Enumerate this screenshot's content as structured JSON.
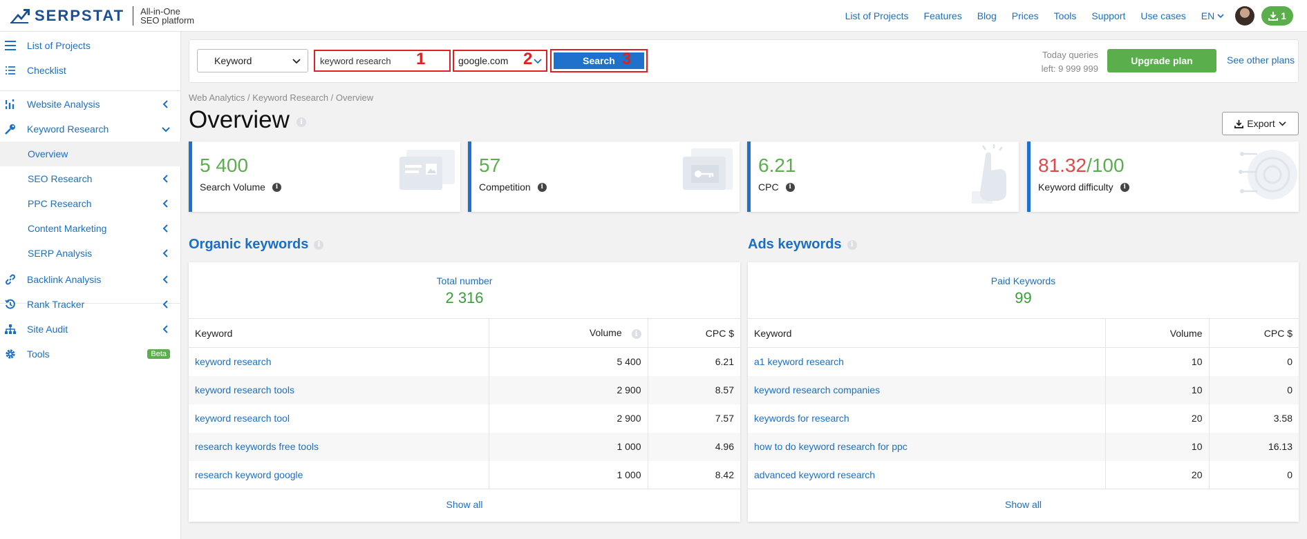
{
  "brand": {
    "name": "SERPSTAT",
    "tagline_1": "All-in-One",
    "tagline_2": "SEO platform"
  },
  "topnav": {
    "links": [
      "List of Projects",
      "Features",
      "Blog",
      "Prices",
      "Tools",
      "Support",
      "Use cases"
    ],
    "lang": "EN",
    "download_count": "1"
  },
  "sidebar": {
    "list_of_projects": "List of Projects",
    "checklist": "Checklist",
    "website_analysis": "Website Analysis",
    "keyword_research": "Keyword Research",
    "overview": "Overview",
    "seo_research": "SEO Research",
    "ppc_research": "PPC Research",
    "content_marketing": "Content Marketing",
    "serp_analysis": "SERP Analysis",
    "backlink_analysis": "Backlink Analysis",
    "rank_tracker": "Rank Tracker",
    "site_audit": "Site Audit",
    "tools": "Tools",
    "beta": "Beta"
  },
  "search": {
    "type": "Keyword",
    "query": "keyword research",
    "database": "google.com",
    "button": "Search",
    "markers": [
      "1",
      "2",
      "3"
    ],
    "queries_line1": "Today queries",
    "queries_line2": "left: 9 999 999",
    "upgrade": "Upgrade plan",
    "other_plans": "See other plans"
  },
  "breadcrumb": "Web Analytics / Keyword Research / Overview",
  "page_title": "Overview",
  "export": "Export",
  "cards": {
    "volume": {
      "value": "5 400",
      "label": "Search Volume"
    },
    "competition": {
      "value": "57",
      "label": "Competition"
    },
    "cpc": {
      "value": "6.21",
      "label": "CPC"
    },
    "difficulty": {
      "value": "81.32",
      "max": "/100",
      "label": "Keyword difficulty"
    }
  },
  "organic": {
    "title": "Organic keywords",
    "total_label": "Total number",
    "total": "2 316",
    "headers": [
      "Keyword",
      "Volume",
      "CPC $"
    ],
    "rows": [
      {
        "keyword": "keyword research",
        "volume": "5 400",
        "cpc": "6.21"
      },
      {
        "keyword": "keyword research tools",
        "volume": "2 900",
        "cpc": "8.57"
      },
      {
        "keyword": "keyword research tool",
        "volume": "2 900",
        "cpc": "7.57"
      },
      {
        "keyword": "research keywords free tools",
        "volume": "1 000",
        "cpc": "4.96"
      },
      {
        "keyword": "research keyword google",
        "volume": "1 000",
        "cpc": "8.42"
      }
    ],
    "show_all": "Show all"
  },
  "ads": {
    "title": "Ads keywords",
    "total_label": "Paid Keywords",
    "total": "99",
    "headers": [
      "Keyword",
      "Volume",
      "CPC $"
    ],
    "rows": [
      {
        "keyword": "a1 keyword research",
        "volume": "10",
        "cpc": "0"
      },
      {
        "keyword": "keyword research companies",
        "volume": "10",
        "cpc": "0"
      },
      {
        "keyword": "keywords for research",
        "volume": "20",
        "cpc": "3.58"
      },
      {
        "keyword": "how to do keyword research for ppc",
        "volume": "10",
        "cpc": "16.13"
      },
      {
        "keyword": "advanced keyword research",
        "volume": "20",
        "cpc": "0"
      }
    ],
    "show_all": "Show all"
  },
  "colors": {
    "accent": "#1a6fc4",
    "green": "#5aaf4c",
    "red": "#e02020",
    "difficulty": "#e04848"
  }
}
